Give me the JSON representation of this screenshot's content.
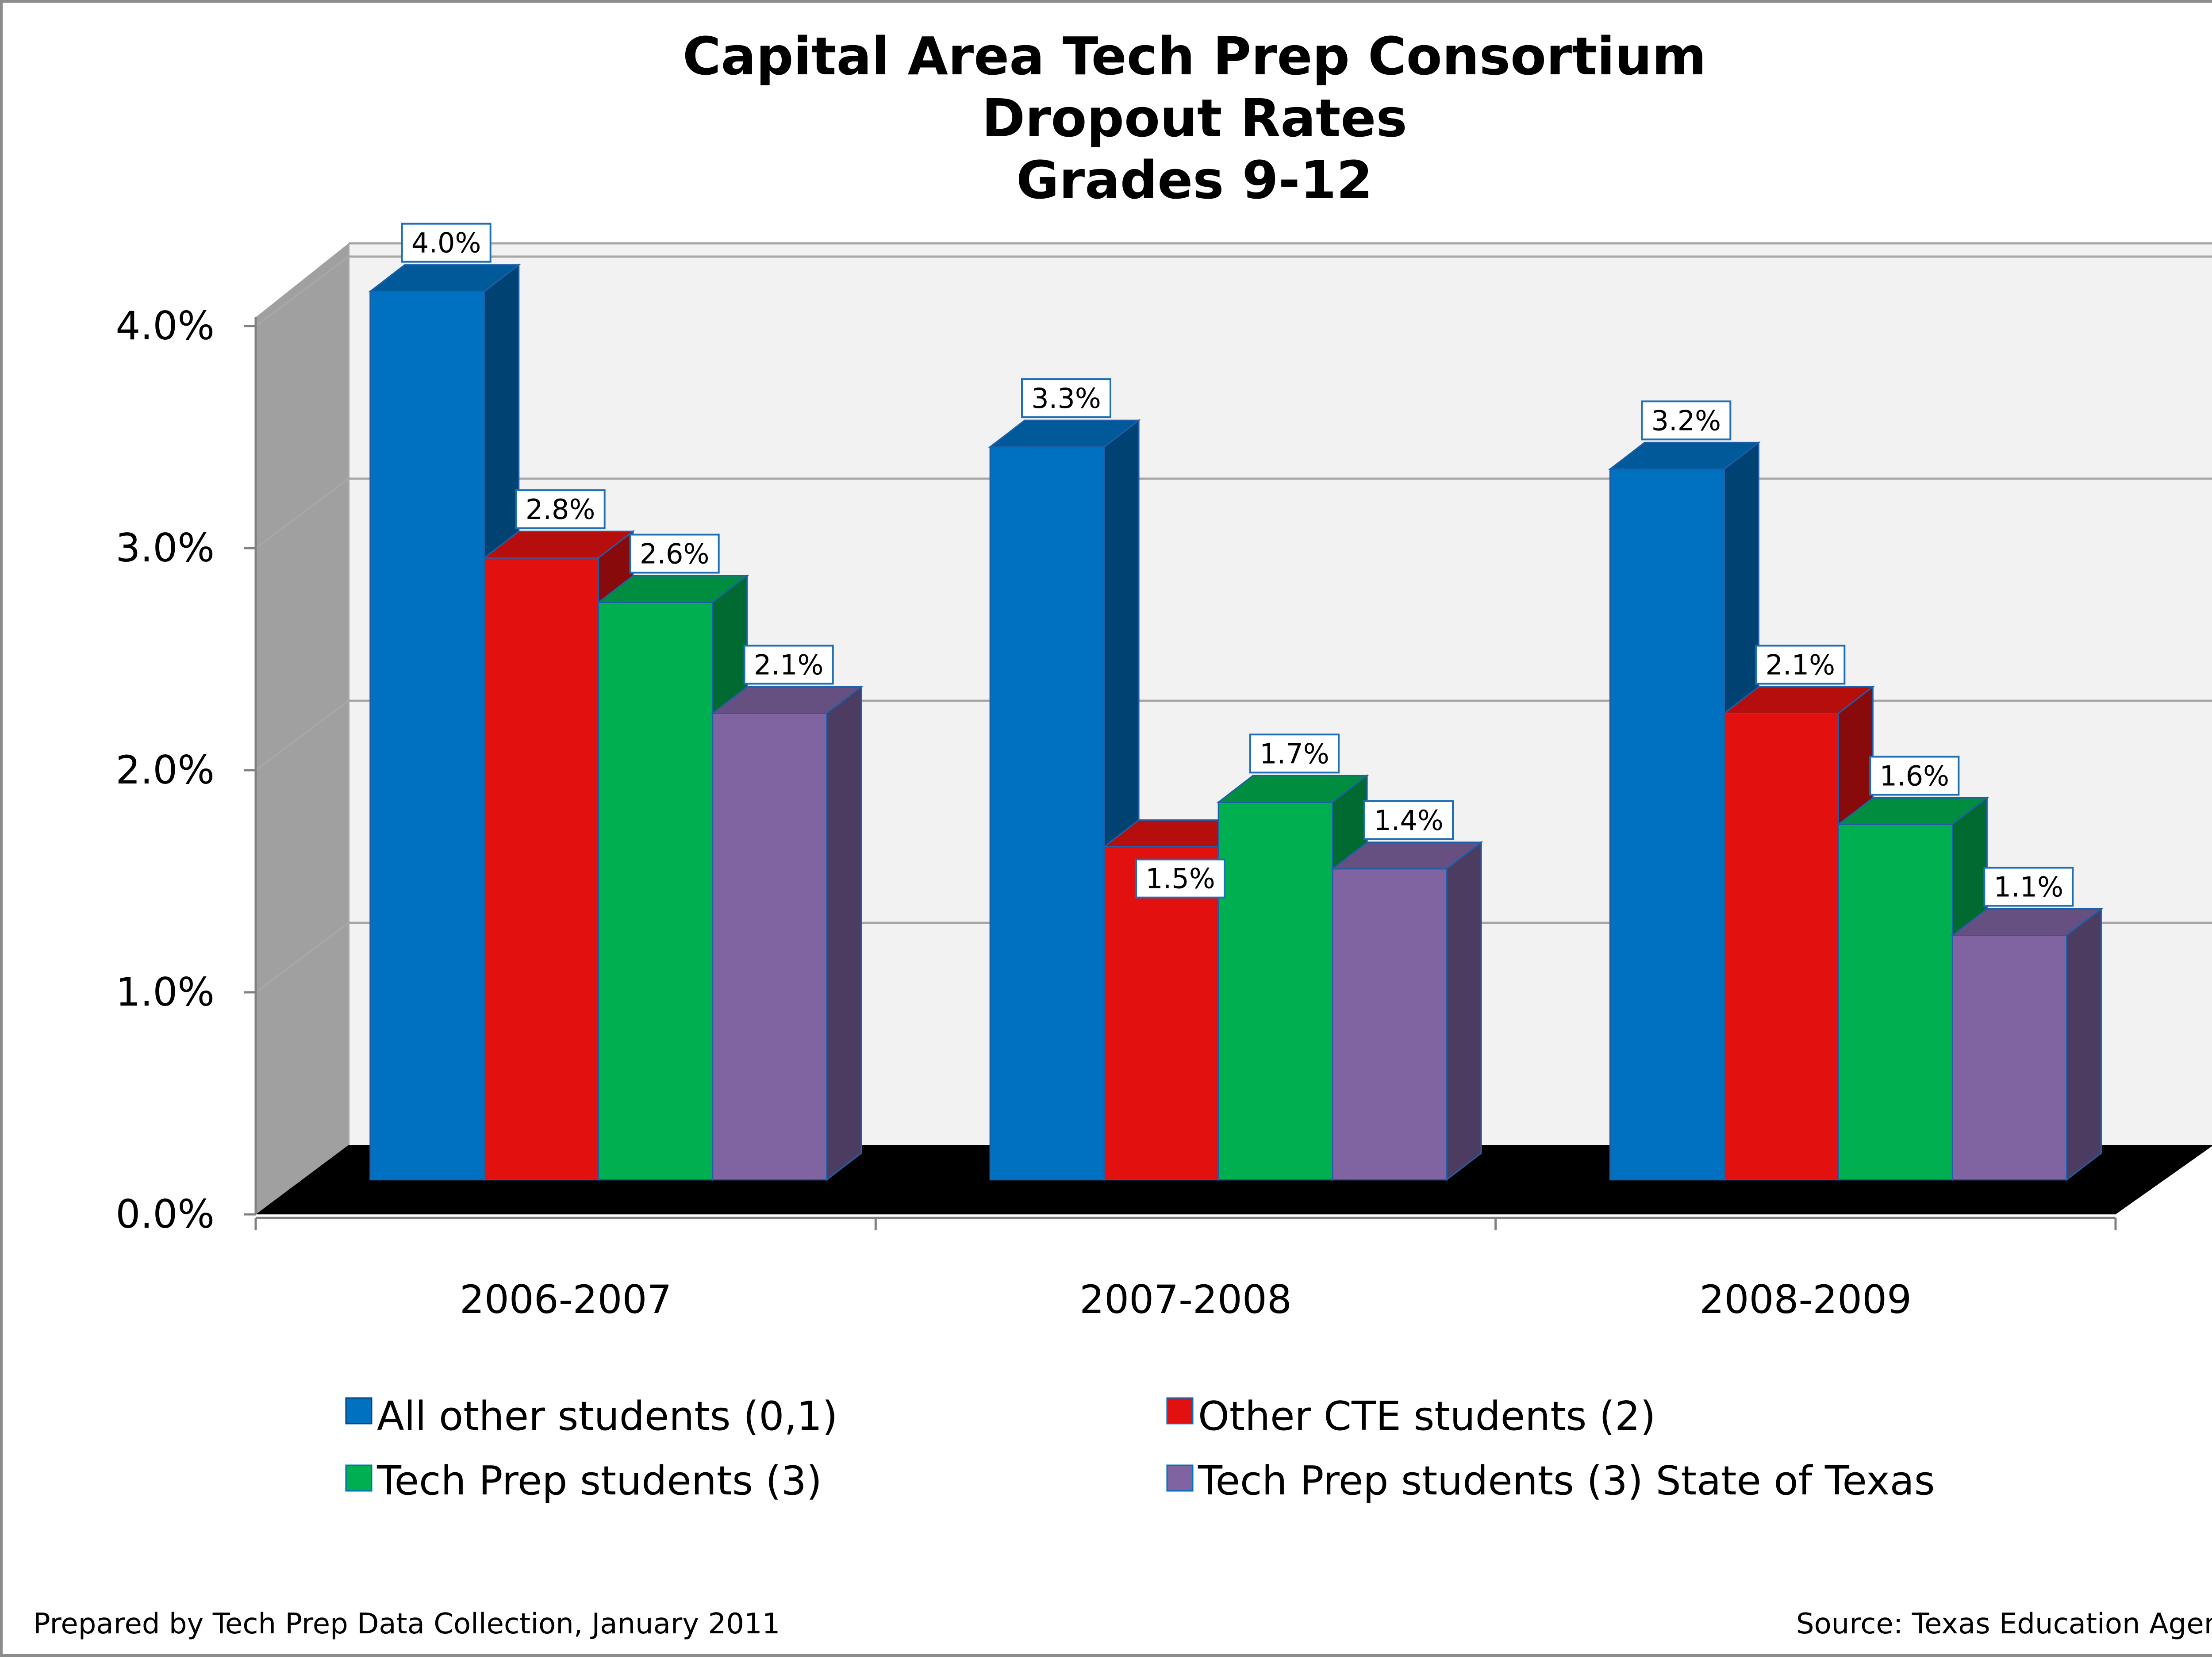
{
  "chart_data": {
    "type": "bar",
    "title": "Capital Area Tech Prep Consortium",
    "title_lines": [
      "Capital Area Tech Prep Consortium",
      "Dropout Rates",
      "Grades 9-12"
    ],
    "categories": [
      "2006-2007",
      "2007-2008",
      "2008-2009"
    ],
    "series": [
      {
        "name": "All other students (0,1)",
        "values": [
          4.0,
          3.3,
          3.2
        ],
        "labels": [
          "4.0%",
          "3.3%",
          "3.2%"
        ],
        "color": "#0070C0"
      },
      {
        "name": "Other CTE students (2)",
        "values": [
          2.8,
          1.5,
          2.1
        ],
        "labels": [
          "2.8%",
          "1.5%",
          "2.1%"
        ],
        "color": "#E31010"
      },
      {
        "name": "Tech Prep students (3)",
        "values": [
          2.6,
          1.7,
          1.6
        ],
        "labels": [
          "2.6%",
          "1.7%",
          "1.6%"
        ],
        "color": "#00B050"
      },
      {
        "name": "Tech Prep students (3) State of Texas",
        "values": [
          2.1,
          1.4,
          1.1
        ],
        "labels": [
          "2.1%",
          "1.4%",
          "1.1%"
        ],
        "color": "#8064A2"
      }
    ],
    "ylim": [
      0,
      4.0
    ],
    "yticks": [
      0,
      1,
      2,
      3,
      4
    ],
    "ytick_labels": [
      "0.0%",
      "1.0%",
      "2.0%",
      "3.0%",
      "4.0%"
    ],
    "grid": true,
    "legend_position": "bottom",
    "projection": "3d-clustered-column"
  },
  "footer": {
    "left": "Prepared by Tech Prep Data Collection, January 2011",
    "right": "Source:  Texas Education Agen"
  },
  "colors": {
    "wall": "#F2F2F2",
    "side_wall": "#A0A0A0",
    "floor": "#000000",
    "grid": "#A6A6A6",
    "label_border": "#1F6FB5"
  }
}
